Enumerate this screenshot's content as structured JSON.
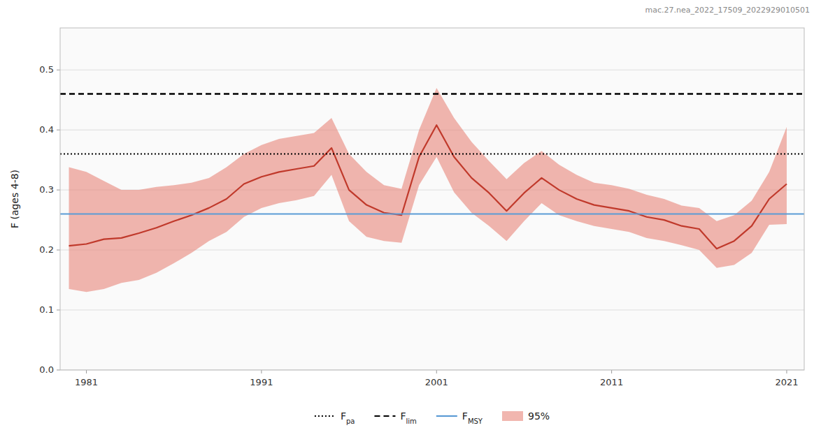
{
  "chart_data": {
    "type": "line",
    "ylabel": "F (ages 4-8)",
    "annotation": "mac.27.nea_2022_17509_2022929010501",
    "x": [
      1980,
      1981,
      1982,
      1983,
      1984,
      1985,
      1986,
      1987,
      1988,
      1989,
      1990,
      1991,
      1992,
      1993,
      1994,
      1995,
      1996,
      1997,
      1998,
      1999,
      2000,
      2001,
      2002,
      2003,
      2004,
      2005,
      2006,
      2007,
      2008,
      2009,
      2010,
      2011,
      2012,
      2013,
      2014,
      2015,
      2016,
      2017,
      2018,
      2019,
      2020,
      2021
    ],
    "series": [
      {
        "type": "line",
        "color": "#C0392B",
        "values": [
          0.207,
          0.21,
          0.218,
          0.22,
          0.228,
          0.237,
          0.248,
          0.258,
          0.27,
          0.285,
          0.31,
          0.322,
          0.33,
          0.335,
          0.34,
          0.37,
          0.3,
          0.275,
          0.262,
          0.258,
          0.355,
          0.408,
          0.355,
          0.32,
          0.295,
          0.265,
          0.295,
          0.32,
          0.3,
          0.285,
          0.275,
          0.27,
          0.265,
          0.255,
          0.25,
          0.24,
          0.235,
          0.202,
          0.215,
          0.24,
          0.285,
          0.31
        ]
      },
      {
        "type": "area",
        "name": "95%",
        "color": "#E8867A",
        "upper": [
          0.338,
          0.33,
          0.315,
          0.3,
          0.3,
          0.305,
          0.308,
          0.312,
          0.32,
          0.338,
          0.36,
          0.375,
          0.385,
          0.39,
          0.395,
          0.42,
          0.36,
          0.33,
          0.308,
          0.302,
          0.4,
          0.47,
          0.42,
          0.38,
          0.348,
          0.318,
          0.345,
          0.365,
          0.342,
          0.325,
          0.312,
          0.308,
          0.302,
          0.292,
          0.285,
          0.274,
          0.27,
          0.248,
          0.258,
          0.282,
          0.33,
          0.405
        ],
        "lower": [
          0.135,
          0.13,
          0.135,
          0.145,
          0.15,
          0.162,
          0.178,
          0.195,
          0.215,
          0.23,
          0.255,
          0.27,
          0.278,
          0.283,
          0.29,
          0.325,
          0.248,
          0.222,
          0.215,
          0.212,
          0.308,
          0.355,
          0.296,
          0.262,
          0.24,
          0.215,
          0.248,
          0.278,
          0.258,
          0.248,
          0.24,
          0.235,
          0.23,
          0.22,
          0.215,
          0.208,
          0.2,
          0.17,
          0.175,
          0.195,
          0.242,
          0.243
        ]
      }
    ],
    "reference_lines": [
      {
        "name": "Fpa",
        "value": 0.36,
        "color": "#000000",
        "line_style": "dotted"
      },
      {
        "name": "Flim",
        "value": 0.46,
        "color": "#000000",
        "line_style": "dashed"
      },
      {
        "name": "FMSY",
        "value": 0.26,
        "color": "#5B9BD5",
        "line_style": "solid"
      }
    ],
    "xlim": [
      1979.5,
      2022
    ],
    "xticks": [
      1981,
      1991,
      2001,
      2011,
      2021
    ],
    "ylim": [
      0,
      0.57
    ],
    "yticks": [
      {
        "value": 0,
        "label": "0.0"
      },
      0.1,
      0.2,
      0.3,
      0.4,
      0.5
    ],
    "grid": "y",
    "legend": "bottom"
  }
}
